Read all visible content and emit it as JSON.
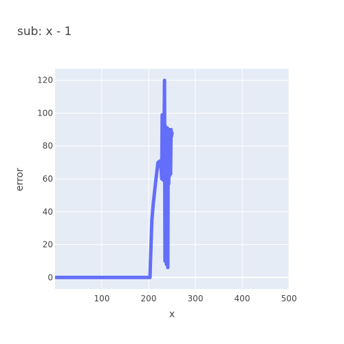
{
  "chart_data": {
    "type": "line",
    "title": "sub: x - 1",
    "xlabel": "x",
    "ylabel": "error",
    "xlim": [
      0,
      500
    ],
    "ylim": [
      -7,
      127
    ],
    "xticks": [
      100,
      200,
      300,
      400,
      500
    ],
    "yticks": [
      0,
      20,
      40,
      60,
      80,
      100,
      120
    ],
    "grid": true,
    "colors": {
      "plot_bg": "#E5ECF6",
      "line": "#636EFA",
      "grid": "#FFFFFF"
    },
    "series": [
      {
        "x": [
          0,
          100,
          200,
          203,
          204,
          205,
          207,
          210,
          215,
          220,
          225,
          227,
          228,
          229,
          230,
          231,
          232,
          233,
          234,
          235,
          236,
          237,
          238,
          239,
          240,
          241,
          242,
          243,
          244,
          245,
          246,
          247,
          248,
          249,
          250
        ],
        "y": [
          0,
          0,
          0,
          0,
          10,
          18,
          35,
          45,
          58,
          70,
          71,
          65,
          60,
          99,
          62,
          98,
          59,
          85,
          120,
          10,
          92,
          57,
          8,
          60,
          91,
          6,
          88,
          57,
          90,
          62,
          85,
          63,
          90,
          86,
          88
        ]
      }
    ]
  }
}
